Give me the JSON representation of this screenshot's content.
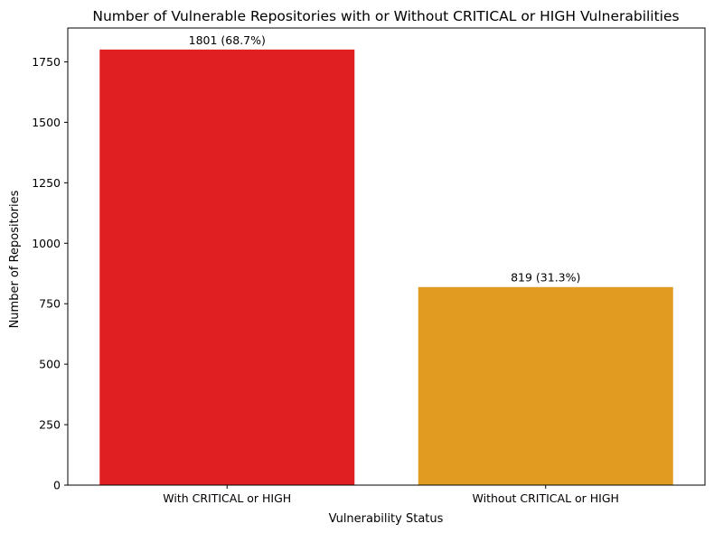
{
  "chart_data": {
    "type": "bar",
    "title": "Number of Vulnerable Repositories with or Without CRITICAL or HIGH Vulnerabilities",
    "xlabel": "Vulnerability Status",
    "ylabel": "Number of Repositories",
    "categories": [
      "With CRITICAL or HIGH",
      "Without CRITICAL or HIGH"
    ],
    "values": [
      1801,
      819
    ],
    "data_labels": [
      "1801 (68.7%)",
      "819 (31.3%)"
    ],
    "colors": [
      "#e02020",
      "#e09b20"
    ],
    "ylim": [
      0,
      1890
    ],
    "yticks": [
      0,
      250,
      500,
      750,
      1000,
      1250,
      1500,
      1750
    ],
    "grid": false,
    "legend": "none"
  }
}
